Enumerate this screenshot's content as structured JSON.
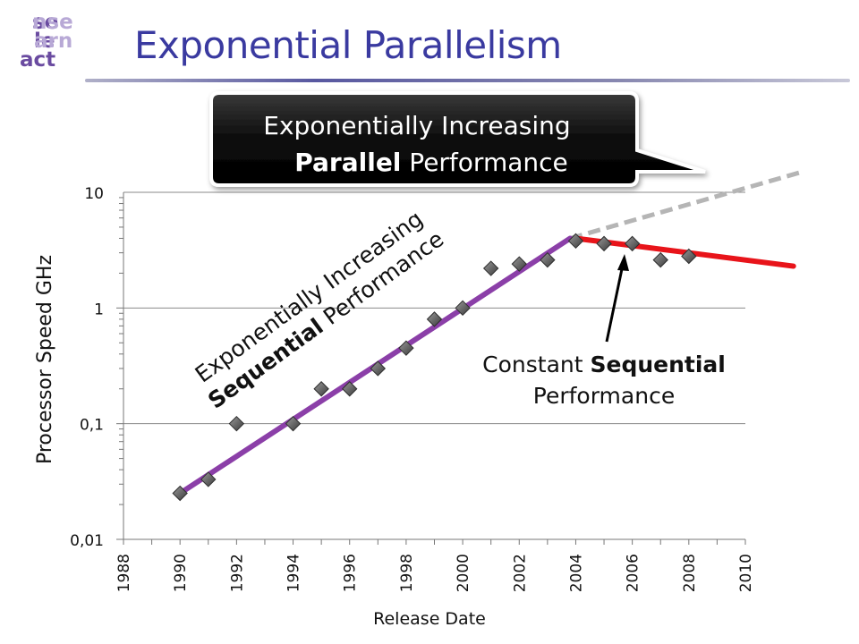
{
  "slide": {
    "title": "Exponential Parallelism",
    "logo": {
      "line1": [
        "se",
        "nse"
      ],
      "line2": [
        "le",
        "arn"
      ],
      "line3": [
        "act",
        ""
      ]
    }
  },
  "callouts": {
    "parallel": {
      "line1": "Exponentially Increasing",
      "line2_bold": "Parallel",
      "line2_rest": " Performance"
    },
    "sequential": {
      "line1": "Exponentially Increasing",
      "line2_bold": "Sequential",
      "line2_rest": " Performance"
    },
    "constant": {
      "line1_rest": "Constant ",
      "line1_bold": "Sequential",
      "line2": "Performance"
    }
  },
  "colors": {
    "title": "#3a3aa0",
    "purple_trend": "#8b3fa8",
    "red_trend": "#e8141a",
    "dashed_projection": "#b5b5b5",
    "markers": "#555555",
    "callout_bg": "#111111"
  },
  "chart_data": {
    "type": "scatter",
    "xlabel": "Release Date",
    "ylabel": "Processor Speed GHz",
    "y_scale": "log",
    "xlim": [
      1988,
      2010
    ],
    "ylim": [
      0.01,
      10
    ],
    "x_ticks": [
      "1988",
      "1990",
      "1992",
      "1994",
      "1996",
      "1998",
      "2000",
      "2002",
      "2004",
      "2006",
      "2008",
      "2010"
    ],
    "y_ticks": [
      {
        "value": 10,
        "label": "10"
      },
      {
        "value": 1,
        "label": "1"
      },
      {
        "value": 0.1,
        "label": "0,1"
      },
      {
        "value": 0.01,
        "label": "0,01"
      }
    ],
    "grid": "horizontal",
    "series": [
      {
        "points": [
          {
            "x": 1990,
            "y": 0.025
          },
          {
            "x": 1991,
            "y": 0.033
          },
          {
            "x": 1992,
            "y": 0.1
          },
          {
            "x": 1994,
            "y": 0.1
          },
          {
            "x": 1995,
            "y": 0.2
          },
          {
            "x": 1996,
            "y": 0.2
          },
          {
            "x": 1997,
            "y": 0.3
          },
          {
            "x": 1998,
            "y": 0.45
          },
          {
            "x": 1999,
            "y": 0.8
          },
          {
            "x": 2000,
            "y": 1.0
          },
          {
            "x": 2001,
            "y": 2.2
          },
          {
            "x": 2002,
            "y": 2.4
          },
          {
            "x": 2003,
            "y": 2.6
          },
          {
            "x": 2004,
            "y": 3.8
          },
          {
            "x": 2005,
            "y": 3.6
          },
          {
            "x": 2006,
            "y": 3.6
          },
          {
            "x": 2007,
            "y": 2.6
          },
          {
            "x": 2008,
            "y": 2.8
          }
        ]
      }
    ],
    "trend_lines": [
      {
        "from": {
          "x": 1990,
          "y": 0.025
        },
        "to": {
          "x": 2003.8,
          "y": 4.0
        }
      },
      {
        "from": {
          "x": 2004,
          "y": 4.0
        },
        "to": {
          "x": 2011.7,
          "y": 2.3
        }
      },
      {
        "from": {
          "x": 2003.8,
          "y": 4.0
        },
        "to": {
          "x": 2012,
          "y": 15
        },
        "style": "dashed"
      }
    ]
  }
}
